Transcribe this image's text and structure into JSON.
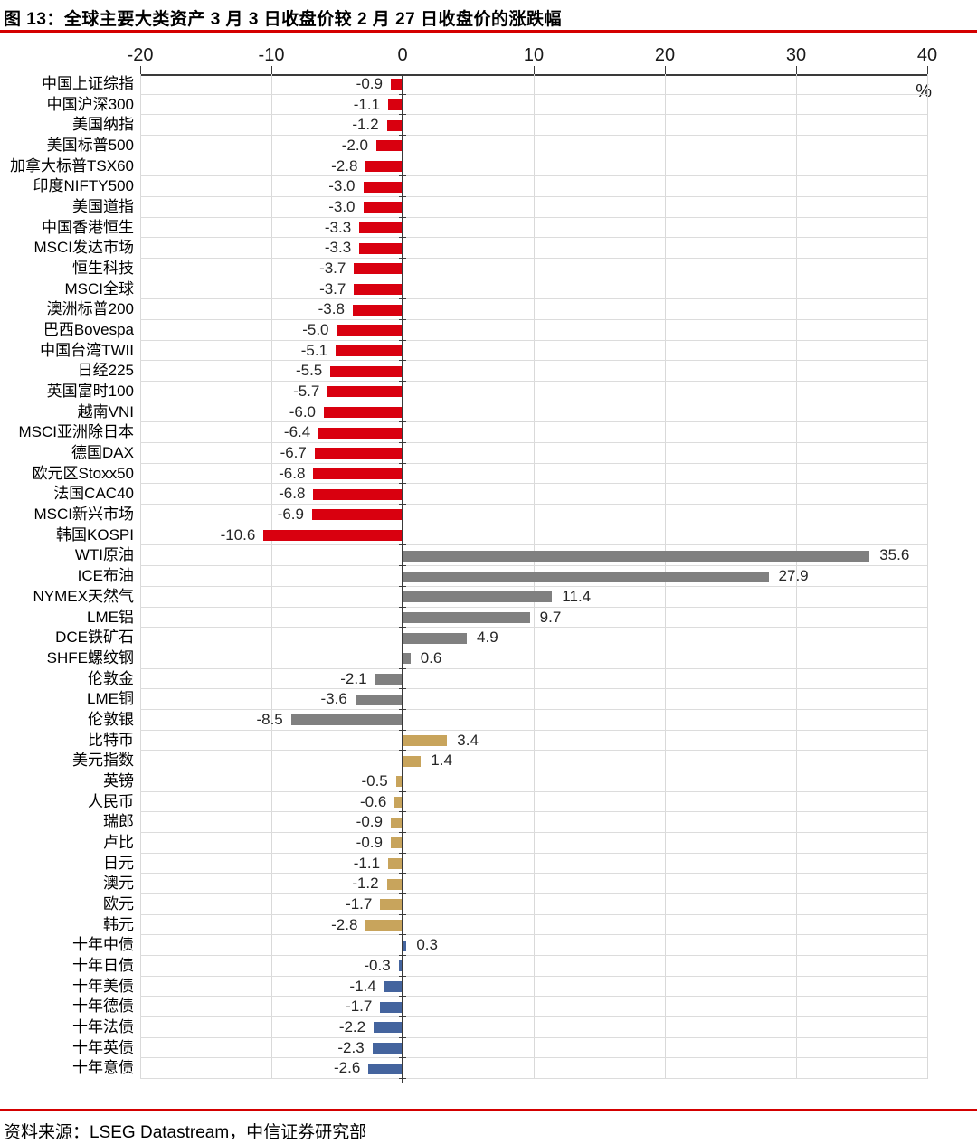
{
  "page": {
    "title": "图 13：全球主要大类资产 3 月 3 日收盘价较 2 月 27 日收盘价的涨跌幅",
    "source_note": "资料来源：LSEG Datastream，中信证券研究部",
    "accent_rule_color": "#d40000"
  },
  "chart_data": {
    "type": "bar",
    "orientation": "horizontal",
    "title": "图 13：全球主要大类资产 3 月 3 日收盘价较 2 月 27 日收盘价的涨跌幅",
    "unit_label": "%",
    "xlabel": "",
    "ylabel": "",
    "xlim": [
      -20,
      40
    ],
    "x_ticks": [
      -20,
      -10,
      0,
      10,
      20,
      30,
      40
    ],
    "grid": true,
    "value_decimals": 1,
    "group_colors": {
      "equity": "#d9000f",
      "commodity": "#808080",
      "currency": "#c8a45c",
      "bond": "#44649e"
    },
    "axis_color": "#3a3a3a",
    "gridline_color": "#d9d9d9",
    "rows": [
      {
        "label": "中国上证综指",
        "value": -0.9,
        "group": "equity"
      },
      {
        "label": "中国沪深300",
        "value": -1.1,
        "group": "equity"
      },
      {
        "label": "美国纳指",
        "value": -1.2,
        "group": "equity"
      },
      {
        "label": "美国标普500",
        "value": -2.0,
        "group": "equity"
      },
      {
        "label": "加拿大标普TSX60",
        "value": -2.8,
        "group": "equity"
      },
      {
        "label": "印度NIFTY500",
        "value": -3.0,
        "group": "equity"
      },
      {
        "label": "美国道指",
        "value": -3.0,
        "group": "equity"
      },
      {
        "label": "中国香港恒生",
        "value": -3.3,
        "group": "equity"
      },
      {
        "label": "MSCI发达市场",
        "value": -3.3,
        "group": "equity"
      },
      {
        "label": "恒生科技",
        "value": -3.7,
        "group": "equity"
      },
      {
        "label": "MSCI全球",
        "value": -3.7,
        "group": "equity"
      },
      {
        "label": "澳洲标普200",
        "value": -3.8,
        "group": "equity"
      },
      {
        "label": "巴西Bovespa",
        "value": -5.0,
        "group": "equity"
      },
      {
        "label": "中国台湾TWII",
        "value": -5.1,
        "group": "equity"
      },
      {
        "label": "日经225",
        "value": -5.5,
        "group": "equity"
      },
      {
        "label": "英国富时100",
        "value": -5.7,
        "group": "equity"
      },
      {
        "label": "越南VNI",
        "value": -6.0,
        "group": "equity"
      },
      {
        "label": "MSCI亚洲除日本",
        "value": -6.4,
        "group": "equity"
      },
      {
        "label": "德国DAX",
        "value": -6.7,
        "group": "equity"
      },
      {
        "label": "欧元区Stoxx50",
        "value": -6.8,
        "group": "equity"
      },
      {
        "label": "法国CAC40",
        "value": -6.8,
        "group": "equity"
      },
      {
        "label": "MSCI新兴市场",
        "value": -6.9,
        "group": "equity"
      },
      {
        "label": "韩国KOSPI",
        "value": -10.6,
        "group": "equity"
      },
      {
        "label": "WTI原油",
        "value": 35.6,
        "group": "commodity"
      },
      {
        "label": "ICE布油",
        "value": 27.9,
        "group": "commodity"
      },
      {
        "label": "NYMEX天然气",
        "value": 11.4,
        "group": "commodity"
      },
      {
        "label": "LME铝",
        "value": 9.7,
        "group": "commodity"
      },
      {
        "label": "DCE铁矿石",
        "value": 4.9,
        "group": "commodity"
      },
      {
        "label": "SHFE螺纹钢",
        "value": 0.6,
        "group": "commodity"
      },
      {
        "label": "伦敦金",
        "value": -2.1,
        "group": "commodity"
      },
      {
        "label": "LME铜",
        "value": -3.6,
        "group": "commodity"
      },
      {
        "label": "伦敦银",
        "value": -8.5,
        "group": "commodity"
      },
      {
        "label": "比特币",
        "value": 3.4,
        "group": "currency"
      },
      {
        "label": "美元指数",
        "value": 1.4,
        "group": "currency"
      },
      {
        "label": "英镑",
        "value": -0.5,
        "group": "currency"
      },
      {
        "label": "人民币",
        "value": -0.6,
        "group": "currency"
      },
      {
        "label": "瑞郎",
        "value": -0.9,
        "group": "currency"
      },
      {
        "label": "卢比",
        "value": -0.9,
        "group": "currency"
      },
      {
        "label": "日元",
        "value": -1.1,
        "group": "currency"
      },
      {
        "label": "澳元",
        "value": -1.2,
        "group": "currency"
      },
      {
        "label": "欧元",
        "value": -1.7,
        "group": "currency"
      },
      {
        "label": "韩元",
        "value": -2.8,
        "group": "currency"
      },
      {
        "label": "十年中债",
        "value": 0.3,
        "group": "bond"
      },
      {
        "label": "十年日债",
        "value": -0.3,
        "group": "bond"
      },
      {
        "label": "十年美债",
        "value": -1.4,
        "group": "bond"
      },
      {
        "label": "十年德债",
        "value": -1.7,
        "group": "bond"
      },
      {
        "label": "十年法债",
        "value": -2.2,
        "group": "bond"
      },
      {
        "label": "十年英债",
        "value": -2.3,
        "group": "bond"
      },
      {
        "label": "十年意债",
        "value": -2.6,
        "group": "bond"
      }
    ]
  }
}
